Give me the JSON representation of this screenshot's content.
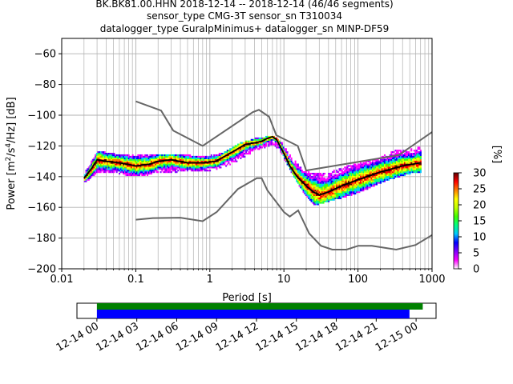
{
  "chart_data": {
    "type": "heatmap",
    "title_lines": [
      "BK.BK81.00.HHN   2018-12-14 -- 2018-12-14  (46/46 segments)",
      "sensor_type CMG-3T sensor_sn T310034",
      "datalogger_type GuralpMinimus+ datalogger_sn MINP-DF59"
    ],
    "xlabel": "Period [s]",
    "ylabel_parts": [
      "Power [m",
      "2",
      "/s",
      "4",
      "/Hz] [dB]"
    ],
    "x_scale": "log",
    "xlim": [
      0.01,
      1000
    ],
    "ylim": [
      -200,
      -50
    ],
    "x_ticks": [
      0.01,
      0.1,
      1,
      10,
      100,
      1000
    ],
    "x_tick_labels": [
      "0.01",
      "0.1",
      "1",
      "10",
      "100",
      "1000"
    ],
    "y_ticks": [
      -200,
      -180,
      -160,
      -140,
      -120,
      -100,
      -80,
      -60
    ],
    "y_tick_labels": [
      "−200",
      "−180",
      "−160",
      "−140",
      "−120",
      "−100",
      "−80",
      "−60"
    ],
    "grid": true,
    "colorbar": {
      "label": "[%]",
      "min": 0,
      "max": 30,
      "ticks": [
        0,
        5,
        10,
        15,
        20,
        25,
        30
      ],
      "tick_labels": [
        "0",
        "5",
        "10",
        "15",
        "20",
        "25",
        "30"
      ],
      "colors": [
        "#ffffff",
        "#ff00ff",
        "#8000ff",
        "#0000ff",
        "#00c8ff",
        "#00ff80",
        "#40ff00",
        "#c0ff00",
        "#ffff00",
        "#ff8000",
        "#ff0000",
        "#600000"
      ]
    },
    "mode_curve": [
      [
        0.02,
        -141
      ],
      [
        0.025,
        -135
      ],
      [
        0.03,
        -129
      ],
      [
        0.04,
        -130
      ],
      [
        0.06,
        -131
      ],
      [
        0.1,
        -133
      ],
      [
        0.15,
        -132
      ],
      [
        0.2,
        -130
      ],
      [
        0.3,
        -129
      ],
      [
        0.5,
        -131
      ],
      [
        0.8,
        -131
      ],
      [
        1.2,
        -130
      ],
      [
        2,
        -124
      ],
      [
        3,
        -119
      ],
      [
        4,
        -118
      ],
      [
        5,
        -117
      ],
      [
        6,
        -115
      ],
      [
        7,
        -114
      ],
      [
        8,
        -116
      ],
      [
        10,
        -125
      ],
      [
        12,
        -133
      ],
      [
        15,
        -140
      ],
      [
        20,
        -146
      ],
      [
        25,
        -150
      ],
      [
        30,
        -152
      ],
      [
        40,
        -150
      ],
      [
        60,
        -146
      ],
      [
        100,
        -142
      ],
      [
        200,
        -137
      ],
      [
        400,
        -133
      ],
      [
        700,
        -131
      ]
    ],
    "nhnm": [
      [
        0.1,
        -91
      ],
      [
        0.22,
        -97
      ],
      [
        0.32,
        -110
      ],
      [
        0.8,
        -120
      ],
      [
        3.8,
        -98
      ],
      [
        4.6,
        -96.5
      ],
      [
        6.3,
        -101
      ],
      [
        7.9,
        -113
      ],
      [
        15.4,
        -120
      ],
      [
        20,
        -136
      ],
      [
        354.8,
        -126
      ],
      [
        1000,
        -111
      ]
    ],
    "nlnm": [
      [
        0.1,
        -168
      ],
      [
        0.17,
        -167
      ],
      [
        0.4,
        -166.7
      ],
      [
        0.8,
        -169
      ],
      [
        1.24,
        -163
      ],
      [
        2.4,
        -148
      ],
      [
        4.3,
        -141
      ],
      [
        5,
        -141
      ],
      [
        6,
        -149
      ],
      [
        10,
        -163
      ],
      [
        12,
        -166
      ],
      [
        15.6,
        -162
      ],
      [
        21.9,
        -177
      ],
      [
        31.6,
        -185
      ],
      [
        45,
        -187.5
      ],
      [
        70,
        -187.5
      ],
      [
        101,
        -185
      ],
      [
        154,
        -185
      ],
      [
        328,
        -187.5
      ],
      [
        600,
        -184.5
      ],
      [
        1000,
        -178
      ]
    ],
    "density_band": {
      "period": [
        0.02,
        0.03,
        0.05,
        0.1,
        0.2,
        0.35,
        0.6,
        1,
        1.5,
        2.5,
        4,
        5.5,
        7,
        9,
        12,
        16,
        25,
        40,
        70,
        120,
        200,
        300,
        500,
        700
      ],
      "upper": [
        -138,
        -124,
        -126,
        -127,
        -126,
        -126,
        -127,
        -127,
        -125,
        -119,
        -116,
        -115,
        -114,
        -118,
        -127,
        -134,
        -139,
        -138,
        -134,
        -131,
        -128,
        -124,
        -123,
        -121
      ],
      "lower": [
        -143,
        -137,
        -137,
        -139,
        -137,
        -136,
        -136,
        -135,
        -133,
        -128,
        -122,
        -120,
        -118,
        -124,
        -135,
        -146,
        -158,
        -155,
        -152,
        -148,
        -143,
        -140,
        -137,
        -136
      ]
    },
    "timeline": {
      "tick_labels": [
        "12-14 00",
        "12-14 03",
        "12-14 06",
        "12-14 09",
        "12-14 12",
        "12-14 15",
        "12-14 18",
        "12-14 21",
        "12-15 00"
      ],
      "range_hours": [
        -1.5,
        25.5
      ],
      "green_bar_hours": [
        0,
        24.5
      ],
      "blue_bar_hours": [
        0,
        23.5
      ],
      "green": "#008000",
      "blue": "#0000ff"
    },
    "colors": {
      "mode": "#000000",
      "noise_model": "#666666",
      "grid": "#b0b0b0"
    }
  }
}
